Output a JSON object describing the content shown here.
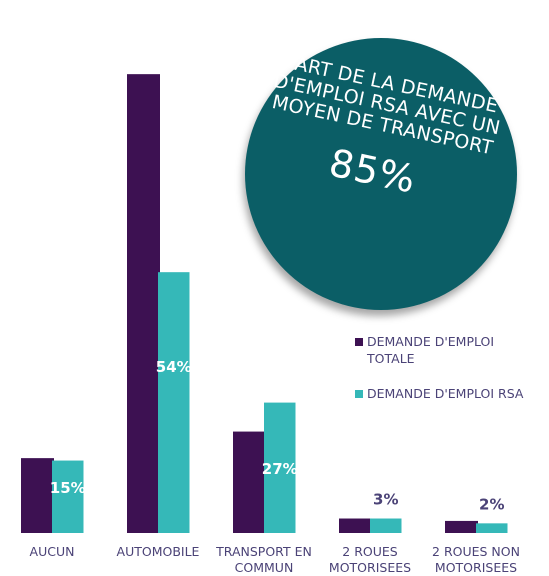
{
  "colors": {
    "total": "#3d1152",
    "rsa": "#35b8b8",
    "callout": "#0b5e66",
    "label": "#4b4377"
  },
  "callout": {
    "text": "PART DE LA DEMANDE D'EMPLOI RSA AVEC UN MOYEN DE TRANSPORT",
    "value": "85%"
  },
  "chart_data": {
    "type": "bar",
    "categories": [
      "AUCUN",
      "AUTOMOBILE",
      "TRANSPORT EN COMMUN",
      "2 ROUES MOTORISEES",
      "2 ROUES NON MOTORISEES"
    ],
    "category_display": [
      "AUCUN",
      "AUTOMOBILE",
      "TRANSPORT EN\nCOMMUN",
      "2 ROUES\nMOTORISEES",
      "2 ROUES NON\nMOTORISEES"
    ],
    "series": [
      {
        "name": "DEMANDE D'EMPLOI TOTALE",
        "values": [
          15.5,
          95,
          21,
          3,
          2.5
        ]
      },
      {
        "name": "DEMANDE D'EMPLOI RSA",
        "values": [
          15,
          54,
          27,
          3,
          2
        ],
        "labels": [
          "15%",
          "54%",
          "27%",
          "3%",
          "2%"
        ]
      }
    ],
    "ylim": [
      0,
      100
    ],
    "grid": false,
    "legend": "right"
  }
}
